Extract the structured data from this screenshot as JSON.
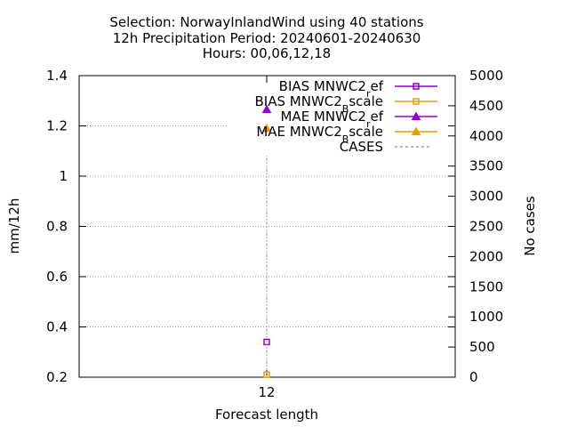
{
  "chart_data": {
    "type": "scatter",
    "title_lines": [
      "Selection: NorwayInlandWind using    40 stations",
      "12h Precipitation    Period: 20240601-20240630",
      "Hours: 00,06,12,18"
    ],
    "xlabel": "Forecast length",
    "ylabel": "mm/12h",
    "y2label": "No cases",
    "x": [
      12
    ],
    "x_ticks": [
      "12"
    ],
    "ylim": [
      0.2,
      1.4
    ],
    "y_ticks": [
      0.2,
      0.4,
      0.6,
      0.8,
      1.0,
      1.2,
      1.4
    ],
    "y_tick_labels": [
      "0.2",
      "0.4",
      "0.6",
      "0.8",
      "1",
      "1.2",
      "1.4"
    ],
    "y2lim": [
      0,
      5000
    ],
    "y2_ticks": [
      0,
      500,
      1000,
      1500,
      2000,
      2500,
      3000,
      3500,
      4000,
      4500,
      5000
    ],
    "y2_tick_labels": [
      "0",
      "500",
      "1000",
      "1500",
      "2000",
      "2500",
      "3000",
      "3500",
      "4000",
      "4500",
      "5000"
    ],
    "grid": true,
    "legend_placement": "top-right",
    "series": [
      {
        "name_main": "BIAS MNWC2",
        "name_sub": "r",
        "name_rest": "ef",
        "marker": "square",
        "color": "#9400d3",
        "axis": "y",
        "values": [
          0.34
        ]
      },
      {
        "name_main": "BIAS MNWC2",
        "name_sub": "B",
        "name_rest": "scale",
        "marker": "square",
        "color": "#e69f00",
        "axis": "y",
        "values": [
          0.21
        ]
      },
      {
        "name_main": "MAE MNWC2",
        "name_sub": "r",
        "name_rest": "ef",
        "marker": "triangle",
        "color": "#9400d3",
        "axis": "y",
        "values": [
          1.265
        ]
      },
      {
        "name_main": "MAE MNWC2",
        "name_sub": "B",
        "name_rest": "scale",
        "marker": "triangle",
        "color": "#e69f00",
        "axis": "y",
        "values": [
          1.19
        ]
      },
      {
        "name_main": "CASES",
        "name_sub": "",
        "name_rest": "",
        "marker": "dash",
        "color": "#a0a0a0",
        "axis": "y2",
        "values": [
          3670
        ]
      }
    ]
  }
}
